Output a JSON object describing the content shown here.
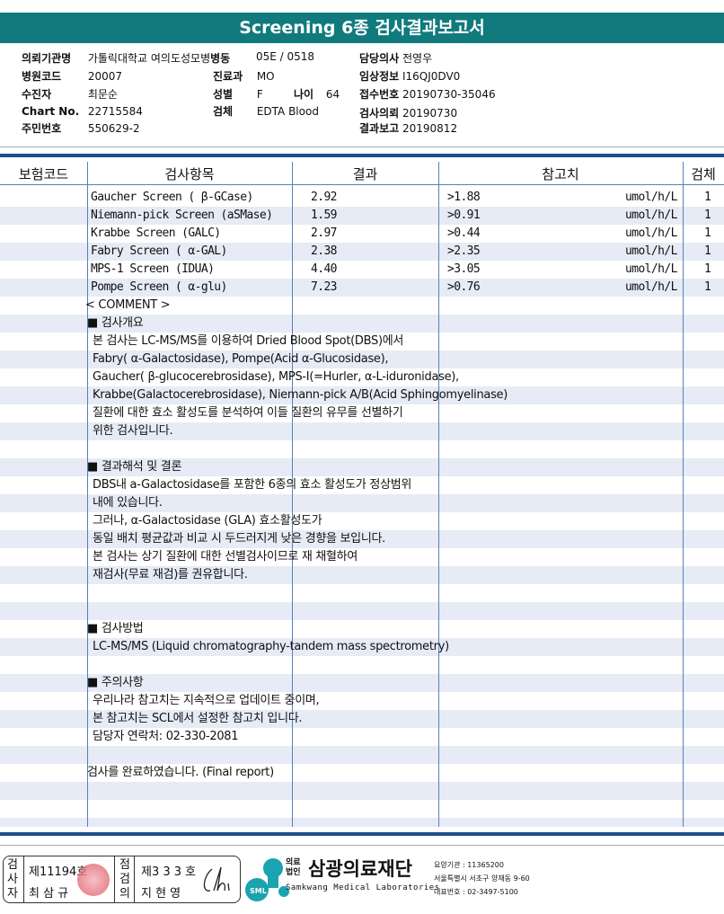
{
  "title": "Screening 6종 검사결과보고서",
  "info": {
    "institution_label": "의뢰기관명",
    "institution": "가톨릭대학교 여의도성모병",
    "ward_label": "병동",
    "ward": "05E / 0518",
    "doctor_label": "담당의사",
    "doctor": "전영우",
    "hospital_code_label": "병원코드",
    "hospital_code": "20007",
    "dept_label": "진료과",
    "dept": "MO",
    "clinical_label": "임상정보",
    "clinical": "I16QJ0DV0",
    "patient_label": "수진자",
    "patient": "최문순",
    "sex_label": "성별",
    "sex": "F",
    "age_label": "나이",
    "age": "64",
    "receipt_label": "접수번호",
    "receipt": "20190730-35046",
    "chart_label": "Chart No.",
    "chart": "22715584",
    "specimen_label": "검체",
    "specimen": "EDTA Blood",
    "request_label": "검사의뢰",
    "request": "20190730",
    "id_label": "주민번호",
    "id": "550629-2",
    "report_label": "결과보고",
    "report": "20190812"
  },
  "columns": [
    "보험코드",
    "검사항목",
    "결과",
    "참고치",
    "검체"
  ],
  "results": [
    {
      "item": "Gaucher Screen ( β-GCase)",
      "result": "2.92",
      "ref": ">1.88",
      "unit": "umol/h/L",
      "specimen": "1"
    },
    {
      "item": "Niemann-pick Screen (aSMase)",
      "result": "1.59",
      "ref": ">0.91",
      "unit": "umol/h/L",
      "specimen": "1"
    },
    {
      "item": "Krabbe Screen (GALC)",
      "result": "2.97",
      "ref": ">0.44",
      "unit": "umol/h/L",
      "specimen": "1"
    },
    {
      "item": "Fabry Screen ( α-GAL)",
      "result": "2.38",
      "ref": ">2.35",
      "unit": "umol/h/L",
      "specimen": "1"
    },
    {
      "item": "MPS-1 Screen (IDUA)",
      "result": "4.40",
      "ref": ">3.05",
      "unit": "umol/h/L",
      "specimen": "1"
    },
    {
      "item": "Pompe Screen ( α-glu)",
      "result": "7.23",
      "ref": ">0.76",
      "unit": "umol/h/L",
      "specimen": "1"
    }
  ],
  "comments": [
    {
      "kind": "label",
      "text": "< COMMENT >"
    },
    {
      "kind": "head",
      "text": "■ 검사개요"
    },
    {
      "kind": "body",
      "text": "본 검사는 LC-MS/MS를 이용하여 Dried Blood Spot(DBS)에서"
    },
    {
      "kind": "body",
      "text": "Fabry( α-Galactosidase), Pompe(Acid α-Glucosidase),"
    },
    {
      "kind": "body",
      "text": "Gaucher( β-glucocerebrosidase), MPS-I(=Hurler, α-L-iduronidase),"
    },
    {
      "kind": "body",
      "text": "Krabbe(Galactocerebrosidase), Niemann-pick A/B(Acid Sphingomyelinase)"
    },
    {
      "kind": "body",
      "text": "질환에 대한 효소 활성도를 분석하여 이들 질환의 유무를 선별하기"
    },
    {
      "kind": "body",
      "text": "위한 검사입니다."
    },
    {
      "kind": "body",
      "text": ""
    },
    {
      "kind": "head",
      "text": "■ 결과해석 및 결론"
    },
    {
      "kind": "body",
      "text": "DBS내 a-Galactosidase를 포함한 6종의 효소 활성도가 정상범위"
    },
    {
      "kind": "body",
      "text": "내에 있습니다."
    },
    {
      "kind": "body",
      "text": "그러나, α-Galactosidase (GLA) 효소활성도가"
    },
    {
      "kind": "body",
      "text": "동일 배치 평균값과 비교 시 두드러지게 낮은 경향을 보입니다."
    },
    {
      "kind": "body",
      "text": "본 검사는 상기 질환에 대한 선별검사이므로 재 채혈하여"
    },
    {
      "kind": "body",
      "text": "재검사(무료 재검)를 권유합니다."
    },
    {
      "kind": "body",
      "text": ""
    },
    {
      "kind": "body",
      "text": ""
    },
    {
      "kind": "head",
      "text": "■ 검사방법"
    },
    {
      "kind": "body",
      "text": "LC-MS/MS (Liquid chromatography-tandem mass spectrometry)"
    },
    {
      "kind": "body",
      "text": ""
    },
    {
      "kind": "head",
      "text": "■ 주의사항"
    },
    {
      "kind": "body",
      "text": "우리나라 참고치는 지속적으로 업데이트 중이며,"
    },
    {
      "kind": "body",
      "text": "본 참고치는 SCL에서 설정한 참고치 입니다."
    },
    {
      "kind": "body",
      "text": "담당자 연락처: 02-330-2081"
    },
    {
      "kind": "body",
      "text": ""
    },
    {
      "kind": "head",
      "text": "검사를  완료하였습니다. (Final report)"
    }
  ],
  "footer": {
    "examiner_label": "검사자",
    "examiner_no": "제11194호",
    "examiner_name": "최 삼 규",
    "reviewer_label": "점검의",
    "reviewer_no": "제3 3 3 호",
    "reviewer_name": "지 현 영",
    "org_type": "의료법인",
    "org_name": "삼광의료재단",
    "org_en": "Samkwang Medical Laboratories",
    "logo_text": "SML",
    "code": "요양기관 : 11365200",
    "address": "서울특별시 서초구 양재동 9-60",
    "phone": "대표번호 : 02-3497-5100"
  },
  "colors": {
    "title_bg": "#117a7c",
    "rule": "#1f4e8c",
    "stripe": "#e6ebf5",
    "logo": "#1aa3b0"
  }
}
